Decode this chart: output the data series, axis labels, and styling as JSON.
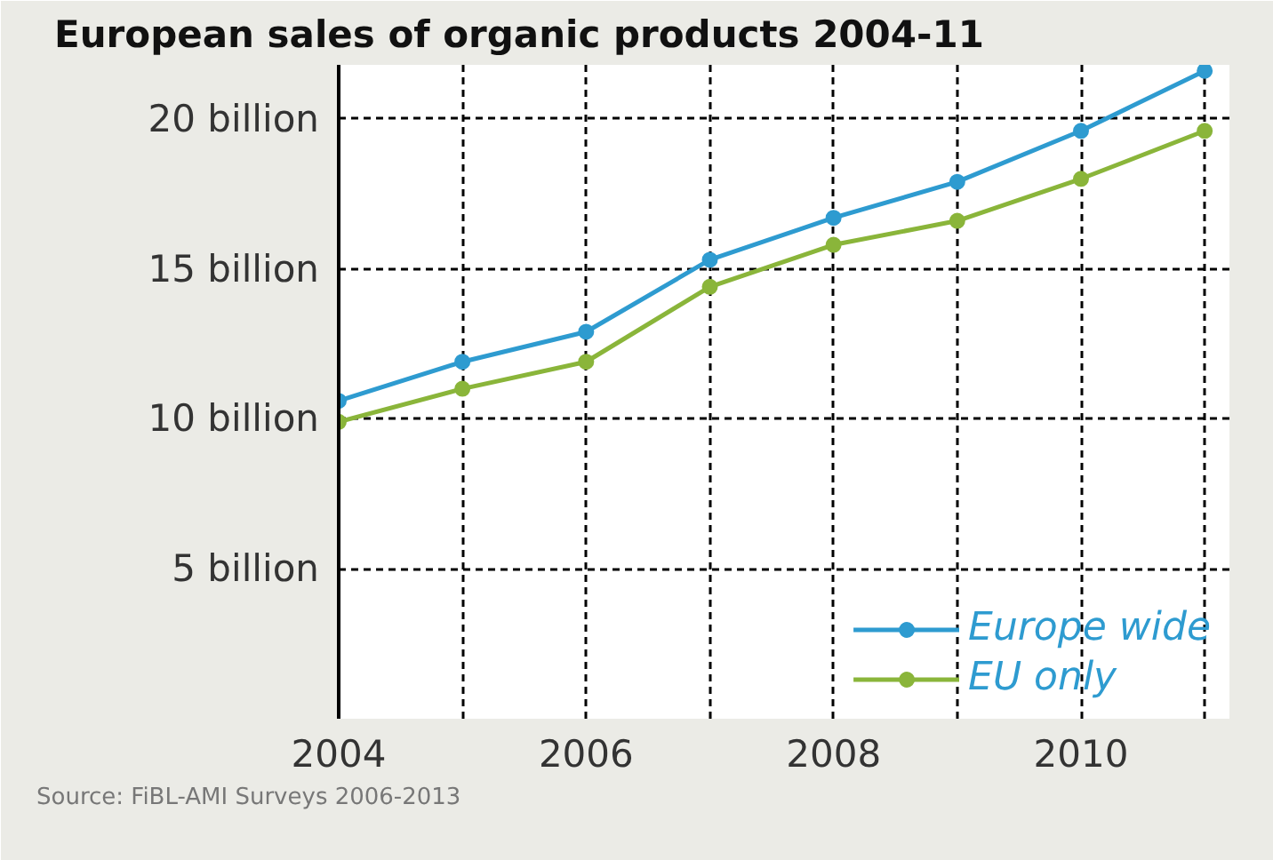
{
  "chart_data": {
    "type": "line",
    "title": "European sales of organic products 2004-11",
    "x": [
      2004,
      2005,
      2006,
      2007,
      2008,
      2009,
      2010,
      2011
    ],
    "series": [
      {
        "name": "Europe wide",
        "color": "#2e9bd0",
        "values": [
          10.6,
          11.9,
          12.9,
          15.3,
          16.7,
          17.9,
          19.6,
          21.6
        ]
      },
      {
        "name": "EU only",
        "color": "#8ab53a",
        "values": [
          9.9,
          11.0,
          11.9,
          14.4,
          15.8,
          16.6,
          18.0,
          19.6
        ]
      }
    ],
    "xlim": [
      2004,
      2011.2
    ],
    "ylim": [
      0,
      21.8
    ],
    "xticks": [
      2004,
      {
        "value": 2005,
        "label": null
      },
      2006,
      {
        "value": 2007,
        "label": null
      },
      2008,
      {
        "value": 2009,
        "label": null
      },
      2010,
      {
        "value": 2011,
        "label": null
      }
    ],
    "yticks": [
      {
        "value": 5,
        "label": "5 billion"
      },
      {
        "value": 10,
        "label": "10 billion"
      },
      {
        "value": 15,
        "label": "15 billion"
      },
      {
        "value": 20,
        "label": "20 billion"
      }
    ],
    "grid": true,
    "legend": "bottom right",
    "marker": "circle",
    "line_style": "solid",
    "annotations": [
      "Source: FiBL-AMI Surveys 2006-2013"
    ]
  }
}
